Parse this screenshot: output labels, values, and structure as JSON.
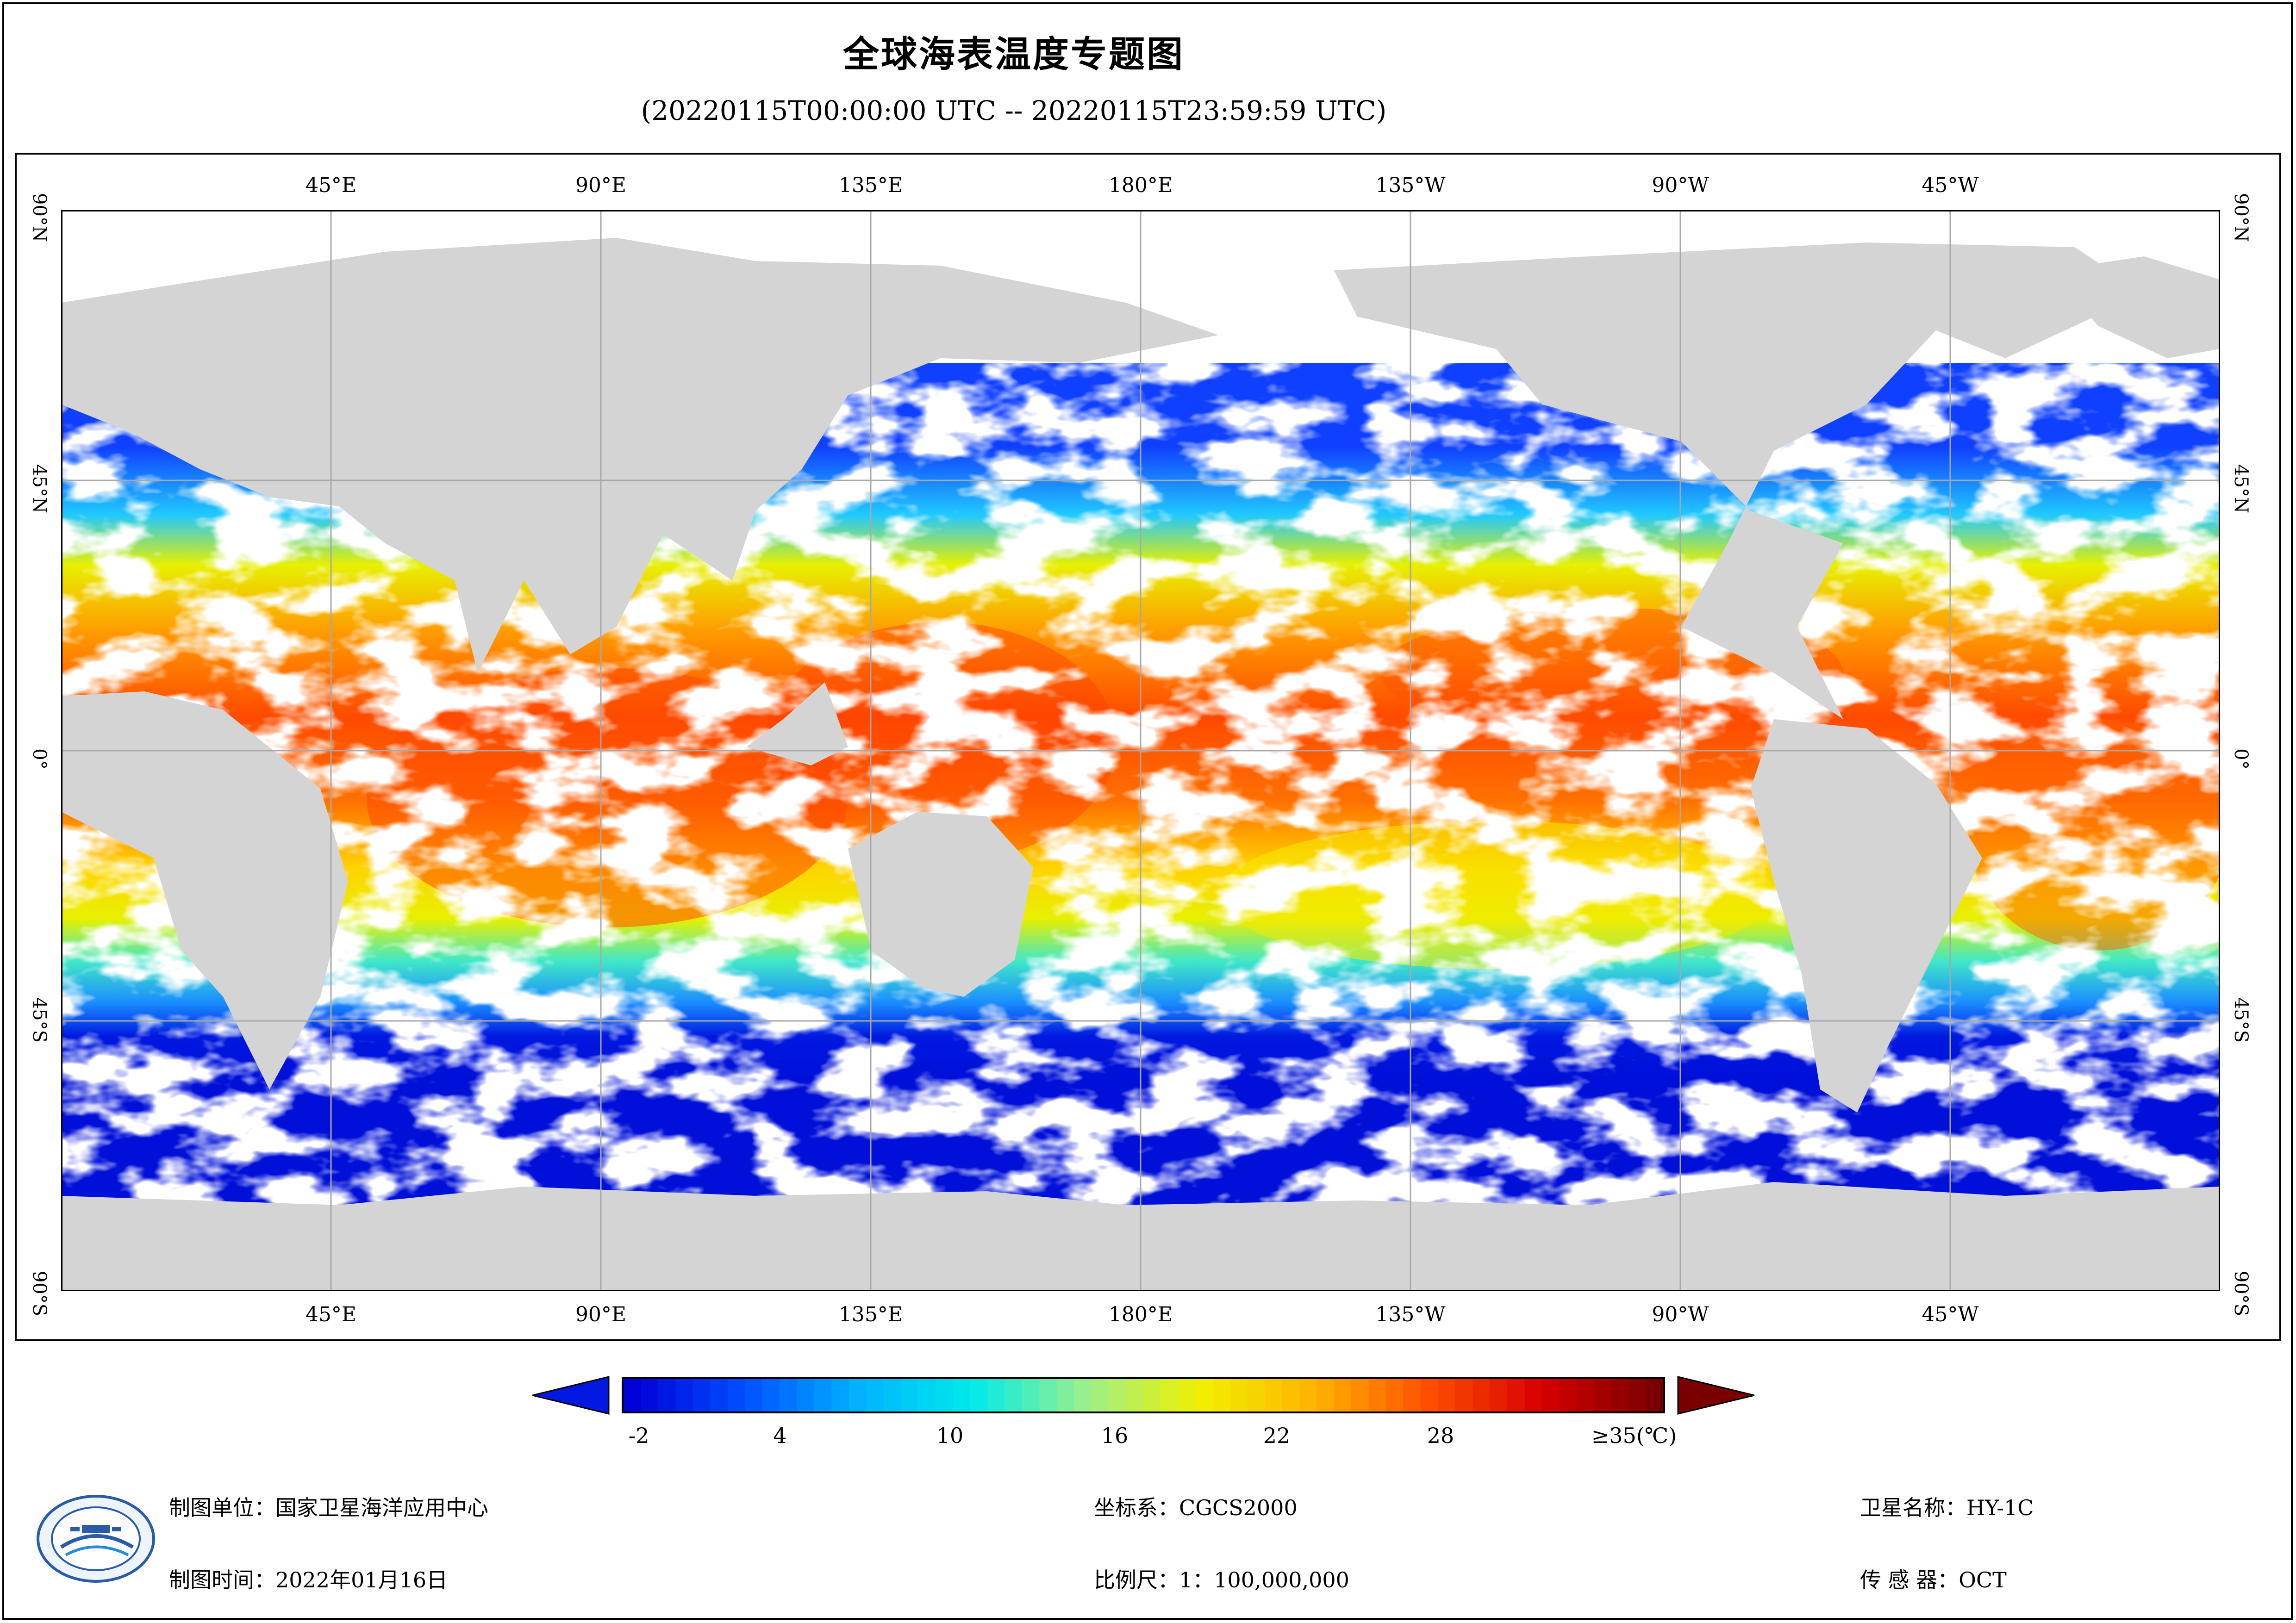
{
  "title": "全球海表温度专题图",
  "subtitle": "(20220115T00:00:00 UTC -- 20220115T23:59:59 UTC)",
  "map": {
    "lon_labels": [
      "45°E",
      "90°E",
      "135°E",
      "180°E",
      "135°W",
      "90°W",
      "45°W"
    ],
    "lat_labels": [
      "90°N",
      "45°N",
      "0°",
      "45°S",
      "90°S"
    ],
    "colors": {
      "land": "#d4d4d4",
      "cloud": "#ffffff",
      "grid": "#a8a8a8"
    }
  },
  "colorbar": {
    "labels": [
      "-2",
      "4",
      "10",
      "16",
      "22",
      "28",
      "≥35(℃)"
    ],
    "min": -2,
    "max": 35,
    "colors": [
      "#0000d8",
      "#0050ff",
      "#00b4ff",
      "#00eaea",
      "#9cf08a",
      "#f0f000",
      "#ffb400",
      "#ff5000",
      "#d80000",
      "#7a0000"
    ]
  },
  "footer": {
    "org_label": "制图单位：",
    "org_value": "国家卫星海洋应用中心",
    "time_label": "制图时间：",
    "time_value": "2022年01月16日",
    "crs_label": "坐标系：",
    "crs_value": "CGCS2000",
    "scale_label": "比例尺：",
    "scale_value": "1：100,000,000",
    "sat_label": "卫星名称：",
    "sat_value": "HY-1C",
    "sensor_label": "传 感 器：",
    "sensor_value": "OCT"
  },
  "logo_text": "国家卫星海洋应用中心 NATIONAL SATELLITE OCEAN APPLICATION SERVICE"
}
